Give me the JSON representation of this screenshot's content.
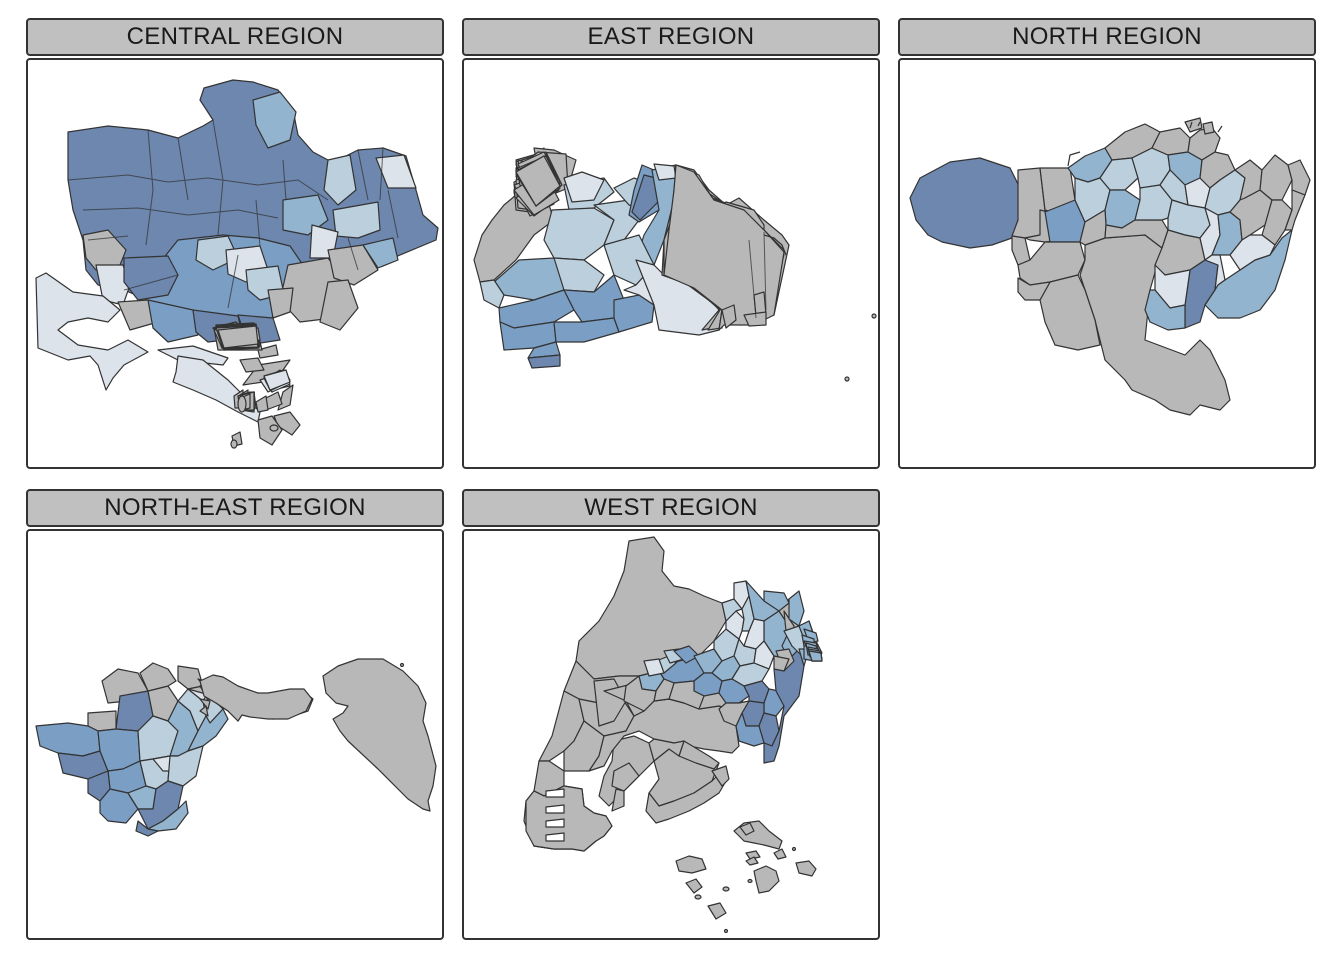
{
  "panels": [
    {
      "title": "CENTRAL REGION"
    },
    {
      "title": "EAST REGION"
    },
    {
      "title": "NORTH REGION"
    },
    {
      "title": "NORTH-EAST REGION"
    },
    {
      "title": "WEST REGION"
    }
  ],
  "palette": {
    "missing": "#b8b8b8",
    "level1": "#dde3ea",
    "level2": "#bccfdd",
    "level3": "#93b4cf",
    "level4": "#7b9ec4",
    "level5": "#6d87ae",
    "border": "#333333",
    "strip": "#c0c0c0"
  }
}
